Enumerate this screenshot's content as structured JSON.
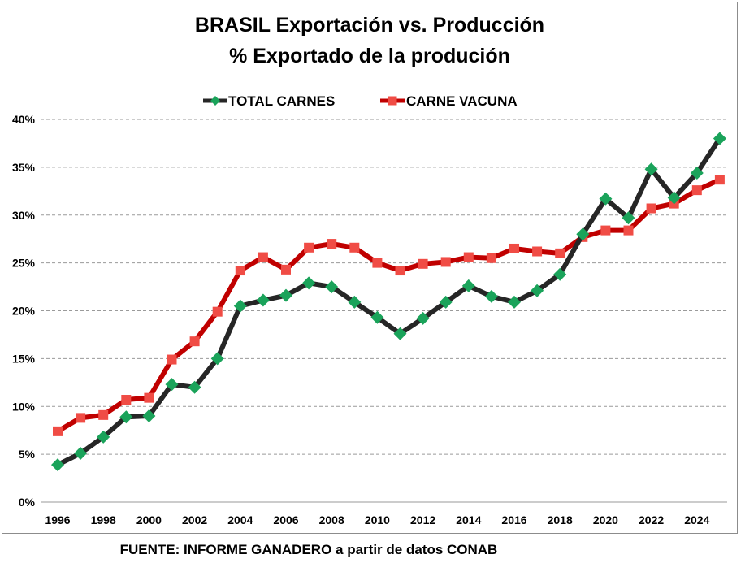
{
  "chart_data": {
    "type": "line",
    "title": "BRASIL Exportación vs. Producción",
    "subtitle": "% Exportado de la produción",
    "x": [
      1996,
      1997,
      1998,
      1999,
      2000,
      2001,
      2002,
      2003,
      2004,
      2005,
      2006,
      2007,
      2008,
      2009,
      2010,
      2011,
      2012,
      2013,
      2014,
      2015,
      2016,
      2017,
      2018,
      2019,
      2020,
      2021,
      2022,
      2023,
      2024,
      2025
    ],
    "x_tick_labels": [
      "1996",
      "1998",
      "2000",
      "2002",
      "2004",
      "2006",
      "2008",
      "2010",
      "2012",
      "2014",
      "2016",
      "2018",
      "2020",
      "2022",
      "2024"
    ],
    "y_tick_labels": [
      "0%",
      "5%",
      "10%",
      "15%",
      "20%",
      "25%",
      "30%",
      "35%",
      "40%"
    ],
    "ylim": [
      0,
      40
    ],
    "y_ticks": [
      0,
      5,
      10,
      15,
      20,
      25,
      30,
      35,
      40
    ],
    "grid": "horizontal dashed",
    "legend_position": "top-center",
    "series": [
      {
        "name": "TOTAL CARNES",
        "line_color": "#262626",
        "marker_color": "#1aa35a",
        "marker": "diamond",
        "values": [
          3.9,
          5.1,
          6.8,
          8.9,
          9.0,
          12.3,
          12.0,
          15.0,
          20.5,
          21.1,
          21.6,
          22.9,
          22.5,
          20.9,
          19.3,
          17.6,
          19.2,
          20.9,
          22.6,
          21.5,
          20.9,
          22.1,
          23.8,
          28.0,
          31.7,
          29.7,
          34.8,
          31.8,
          34.4,
          38.0
        ]
      },
      {
        "name": "CARNE VACUNA",
        "line_color": "#c00000",
        "marker_color": "#f04c45",
        "marker": "square",
        "values": [
          7.4,
          8.8,
          9.1,
          10.7,
          10.9,
          14.9,
          16.8,
          19.9,
          24.2,
          25.6,
          24.3,
          26.6,
          27.0,
          26.6,
          25.0,
          24.2,
          24.9,
          25.1,
          25.6,
          25.5,
          26.5,
          26.2,
          26.0,
          27.7,
          28.4,
          28.4,
          30.7,
          31.2,
          32.6,
          33.7
        ]
      }
    ]
  },
  "source": "FUENTE: INFORME GANADERO a partir de datos CONAB"
}
